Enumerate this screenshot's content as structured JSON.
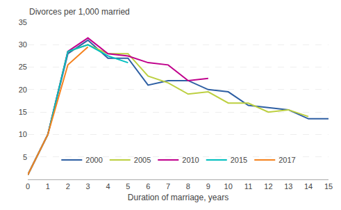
{
  "chart_data": {
    "type": "line",
    "xlabel": "Duration of marriage, years",
    "ylabel": "Divorces per 1,000 married",
    "series": [
      {
        "name": "2000",
        "color": "#2E5FA3",
        "x": [
          0,
          1,
          2,
          3,
          4,
          5,
          6,
          7,
          8,
          9,
          10,
          11,
          12,
          13,
          14,
          15
        ],
        "values": [
          1,
          10,
          28,
          31,
          27,
          27,
          21,
          22,
          22,
          20,
          19.5,
          16.5,
          16,
          15.5,
          13.5,
          13.5
        ]
      },
      {
        "name": "2005",
        "color": "#BCCF3F",
        "x": [
          0,
          1,
          2,
          3,
          4,
          5,
          6,
          7,
          8,
          9,
          10,
          11,
          12,
          13,
          14,
          15
        ],
        "values": [
          1,
          10,
          28.5,
          30,
          28,
          28,
          23,
          21.5,
          19,
          19.5,
          17,
          17,
          15,
          15.5,
          14,
          null
        ]
      },
      {
        "name": "2010",
        "color": "#C0008C",
        "x": [
          0,
          1,
          2,
          3,
          4,
          5,
          6,
          7,
          8,
          9
        ],
        "values": [
          1,
          10,
          28.5,
          31.5,
          28,
          27.5,
          26,
          25.5,
          22,
          22.5
        ]
      },
      {
        "name": "2015",
        "color": "#00BFBF",
        "x": [
          0,
          1,
          2,
          3,
          4,
          5
        ],
        "values": [
          1,
          10,
          28.5,
          30,
          27.5,
          26
        ]
      },
      {
        "name": "2017",
        "color": "#F5821E",
        "x": [
          0,
          1,
          2,
          3
        ],
        "values": [
          1,
          10,
          25.5,
          29.5
        ]
      }
    ],
    "xlim": [
      0,
      15
    ],
    "xticks": [
      0,
      1,
      2,
      3,
      4,
      5,
      6,
      7,
      8,
      9,
      10,
      11,
      12,
      13,
      14,
      15
    ],
    "ylim": [
      0,
      35
    ],
    "yticks": [
      5,
      10,
      15,
      20,
      25,
      30,
      35
    ],
    "grid": true,
    "legend": "bottom"
  }
}
